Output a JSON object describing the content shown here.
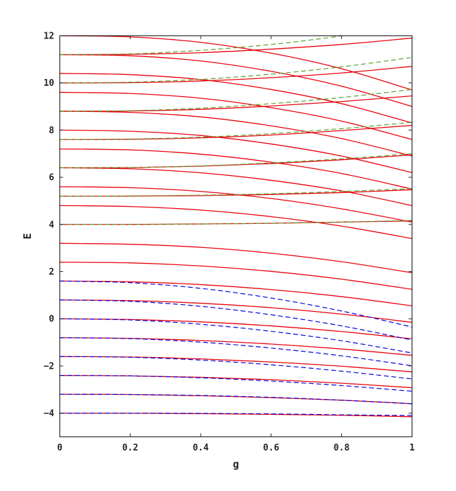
{
  "chart_data": {
    "type": "line",
    "title": "",
    "xlabel": "g",
    "ylabel": "E",
    "xlim": [
      0,
      1
    ],
    "ylim": [
      -5,
      12
    ],
    "xticks": [
      0,
      0.2,
      0.4,
      0.6,
      0.8,
      1
    ],
    "xtick_labels": [
      "0",
      "0.2",
      "0.4",
      "0.6",
      "0.8",
      "1"
    ],
    "yticks": [
      -4,
      -2,
      0,
      2,
      4,
      6,
      8,
      10,
      12
    ],
    "ytick_labels": [
      "−4",
      "−2",
      "0",
      "2",
      "4",
      "6",
      "8",
      "10",
      "12"
    ],
    "grid": false,
    "legend": "none",
    "colors": {
      "red": "#e8000b",
      "blue": "#0000e6",
      "green": "#5aa02c",
      "axis": "#262626"
    },
    "series_groups": [
      {
        "style": "solid",
        "color": "red",
        "x": [
          0,
          0.2,
          0.4,
          0.6,
          0.8,
          1
        ],
        "curves": [
          [
            -4.0,
            -4.0,
            -4.02,
            -4.05,
            -4.09,
            -4.15
          ],
          [
            -3.2,
            -3.21,
            -3.26,
            -3.34,
            -3.45,
            -3.6
          ],
          [
            -2.4,
            -2.42,
            -2.48,
            -2.58,
            -2.73,
            -2.92
          ],
          [
            -1.6,
            -1.62,
            -1.7,
            -1.83,
            -2.01,
            -2.25
          ],
          [
            -0.8,
            -0.83,
            -0.92,
            -1.07,
            -1.28,
            -1.55
          ],
          [
            0.0,
            -0.03,
            -0.13,
            -0.3,
            -0.54,
            -0.85
          ],
          [
            0.8,
            0.77,
            0.66,
            0.47,
            0.2,
            -0.15
          ],
          [
            1.6,
            1.57,
            1.45,
            1.24,
            0.94,
            0.55
          ],
          [
            2.4,
            2.37,
            2.24,
            2.01,
            1.68,
            1.25
          ],
          [
            3.2,
            3.16,
            3.03,
            2.78,
            2.42,
            1.95
          ],
          [
            4.0,
            4.0,
            4.02,
            4.05,
            4.1,
            4.15
          ],
          [
            4.8,
            4.76,
            4.61,
            4.33,
            3.93,
            3.4
          ],
          [
            5.2,
            5.2,
            5.22,
            5.27,
            5.35,
            5.47
          ],
          [
            5.6,
            5.56,
            5.4,
            5.1,
            4.66,
            4.1
          ],
          [
            6.4,
            6.36,
            6.19,
            5.87,
            5.42,
            4.8
          ],
          [
            6.4,
            6.41,
            6.47,
            6.58,
            6.74,
            6.95
          ],
          [
            7.2,
            7.16,
            6.98,
            6.64,
            6.16,
            5.5
          ],
          [
            7.6,
            7.61,
            7.67,
            7.79,
            7.98,
            8.2
          ],
          [
            8.0,
            7.95,
            7.77,
            7.41,
            6.9,
            6.2
          ],
          [
            8.8,
            8.75,
            8.56,
            8.18,
            7.64,
            6.9
          ],
          [
            8.8,
            8.81,
            8.88,
            9.02,
            9.21,
            9.45
          ],
          [
            9.6,
            9.55,
            9.35,
            8.95,
            8.38,
            7.6
          ],
          [
            10.0,
            10.01,
            10.08,
            10.22,
            10.42,
            10.7
          ],
          [
            10.4,
            10.35,
            10.14,
            9.72,
            9.12,
            8.3
          ],
          [
            11.2,
            11.15,
            10.93,
            10.49,
            9.86,
            9.0
          ],
          [
            11.2,
            11.21,
            11.28,
            11.43,
            11.63,
            11.9
          ],
          [
            12.0,
            11.95,
            11.72,
            11.26,
            10.6,
            9.7
          ]
        ]
      },
      {
        "style": "dashed",
        "color": "blue",
        "x": [
          0,
          0.2,
          0.4,
          0.6,
          0.8,
          1
        ],
        "curves": [
          [
            -4.0,
            -4.0,
            -4.01,
            -4.03,
            -4.07,
            -4.1
          ],
          [
            -3.2,
            -3.21,
            -3.25,
            -3.33,
            -3.45,
            -3.6
          ],
          [
            -2.4,
            -2.42,
            -2.5,
            -2.64,
            -2.83,
            -3.07
          ],
          [
            -1.6,
            -1.63,
            -1.75,
            -1.95,
            -2.22,
            -2.55
          ],
          [
            -0.8,
            -0.84,
            -0.99,
            -1.24,
            -1.57,
            -1.99
          ],
          [
            0.0,
            -0.05,
            -0.23,
            -0.53,
            -0.93,
            -1.45
          ],
          [
            0.8,
            0.74,
            0.53,
            0.17,
            -0.3,
            -0.9
          ],
          [
            1.6,
            1.53,
            1.29,
            0.88,
            0.33,
            -0.35
          ]
        ]
      },
      {
        "style": "dashed",
        "color": "green",
        "x": [
          0,
          0.2,
          0.4,
          0.6,
          0.8,
          1
        ],
        "curves": [
          [
            4.0,
            4.0,
            4.02,
            4.05,
            4.1,
            4.17
          ],
          [
            5.2,
            5.21,
            5.24,
            5.3,
            5.4,
            5.52
          ],
          [
            6.4,
            6.41,
            6.48,
            6.61,
            6.78,
            7.0
          ],
          [
            7.6,
            7.62,
            7.7,
            7.85,
            8.06,
            8.33
          ],
          [
            8.8,
            8.82,
            8.93,
            9.12,
            9.38,
            9.72
          ],
          [
            10.0,
            10.03,
            10.15,
            10.37,
            10.68,
            11.08
          ],
          [
            11.2,
            11.23,
            11.38,
            11.63,
            11.99,
            12.44
          ]
        ]
      }
    ]
  }
}
